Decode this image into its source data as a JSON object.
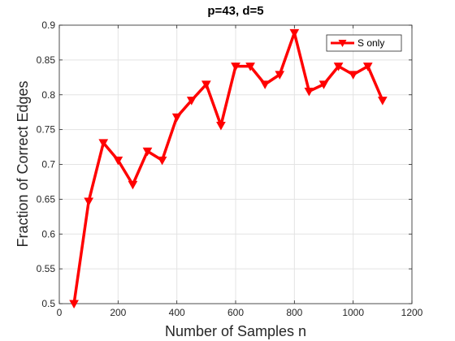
{
  "chart_data": {
    "type": "line",
    "title": "p=43, d=5",
    "xlabel": "Number of Samples n",
    "ylabel": "Fraction of Correct Edges",
    "xlim": [
      0,
      1200
    ],
    "ylim": [
      0.5,
      0.9
    ],
    "xticks": [
      "0",
      "200",
      "400",
      "600",
      "800",
      "1000",
      "1200"
    ],
    "yticks": [
      "0.5",
      "0.55",
      "0.6",
      "0.65",
      "0.7",
      "0.75",
      "0.8",
      "0.85",
      "0.9"
    ],
    "grid": true,
    "legend_position": "top-right",
    "series": [
      {
        "name": "S only",
        "color": "#ff0000",
        "marker": "triangle-down",
        "x": [
          50,
          100,
          150,
          200,
          250,
          300,
          350,
          400,
          450,
          500,
          550,
          600,
          650,
          700,
          750,
          800,
          850,
          900,
          950,
          1000,
          1050,
          1100
        ],
        "y": [
          0.5,
          0.647,
          0.731,
          0.706,
          0.671,
          0.719,
          0.706,
          0.768,
          0.792,
          0.815,
          0.756,
          0.841,
          0.841,
          0.815,
          0.829,
          0.889,
          0.805,
          0.815,
          0.841,
          0.829,
          0.841,
          0.792
        ]
      }
    ]
  }
}
